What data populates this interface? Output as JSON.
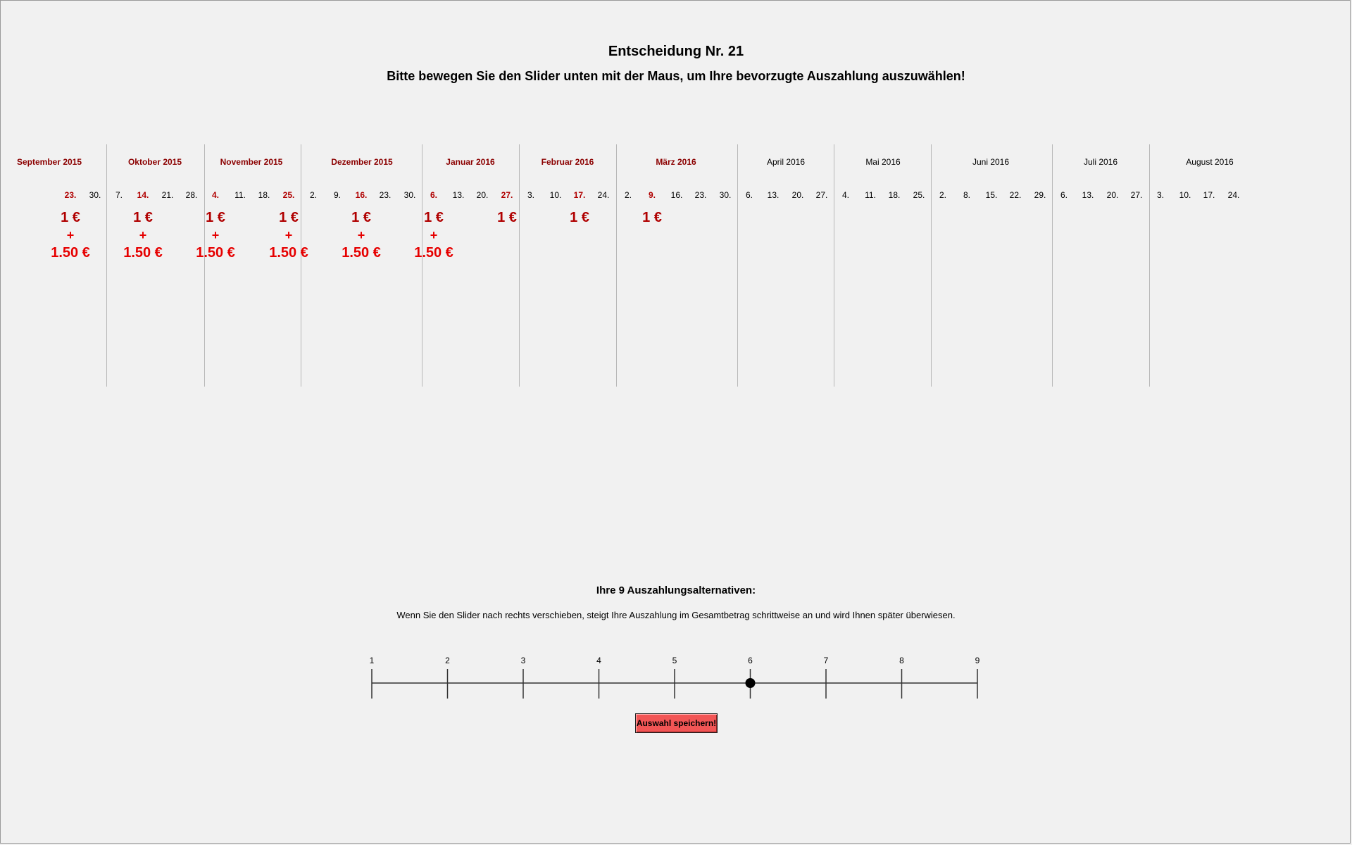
{
  "header": {
    "title": "Entscheidung Nr. 21",
    "instruction": "Bitte bewegen Sie den Slider unten mit der Maus, um Ihre bevorzugte Auszahlung auszuwählen!"
  },
  "calendar": {
    "months": [
      {
        "label": "September 2015",
        "highlighted": true
      },
      {
        "label": "Oktober 2015",
        "highlighted": true
      },
      {
        "label": "November 2015",
        "highlighted": true
      },
      {
        "label": "Dezember 2015",
        "highlighted": true
      },
      {
        "label": "Januar 2016",
        "highlighted": true
      },
      {
        "label": "Februar 2016",
        "highlighted": true
      },
      {
        "label": "März 2016",
        "highlighted": true
      },
      {
        "label": "April 2016",
        "highlighted": false
      },
      {
        "label": "Mai 2016",
        "highlighted": false
      },
      {
        "label": "Juni 2016",
        "highlighted": false
      },
      {
        "label": "Juli 2016",
        "highlighted": false
      },
      {
        "label": "August 2016",
        "highlighted": false
      }
    ],
    "days": [
      {
        "label": "23.",
        "highlighted": true
      },
      {
        "label": "30.",
        "highlighted": false
      },
      {
        "label": "7.",
        "highlighted": false
      },
      {
        "label": "14.",
        "highlighted": true
      },
      {
        "label": "21.",
        "highlighted": false
      },
      {
        "label": "28.",
        "highlighted": false
      },
      {
        "label": "4.",
        "highlighted": true
      },
      {
        "label": "11.",
        "highlighted": false
      },
      {
        "label": "18.",
        "highlighted": false
      },
      {
        "label": "25.",
        "highlighted": true
      },
      {
        "label": "2.",
        "highlighted": false
      },
      {
        "label": "9.",
        "highlighted": false
      },
      {
        "label": "16.",
        "highlighted": true
      },
      {
        "label": "23.",
        "highlighted": false
      },
      {
        "label": "30.",
        "highlighted": false
      },
      {
        "label": "6.",
        "highlighted": true
      },
      {
        "label": "13.",
        "highlighted": false
      },
      {
        "label": "20.",
        "highlighted": false
      },
      {
        "label": "27.",
        "highlighted": true
      },
      {
        "label": "3.",
        "highlighted": false
      },
      {
        "label": "10.",
        "highlighted": false
      },
      {
        "label": "17.",
        "highlighted": true
      },
      {
        "label": "24.",
        "highlighted": false
      },
      {
        "label": "2.",
        "highlighted": false
      },
      {
        "label": "9.",
        "highlighted": true
      },
      {
        "label": "16.",
        "highlighted": false
      },
      {
        "label": "23.",
        "highlighted": false
      },
      {
        "label": "30.",
        "highlighted": false
      },
      {
        "label": "6.",
        "highlighted": false
      },
      {
        "label": "13.",
        "highlighted": false
      },
      {
        "label": "20.",
        "highlighted": false
      },
      {
        "label": "27.",
        "highlighted": false
      },
      {
        "label": "4.",
        "highlighted": false
      },
      {
        "label": "11.",
        "highlighted": false
      },
      {
        "label": "18.",
        "highlighted": false
      },
      {
        "label": "25.",
        "highlighted": false
      },
      {
        "label": "2.",
        "highlighted": false
      },
      {
        "label": "8.",
        "highlighted": false
      },
      {
        "label": "15.",
        "highlighted": false
      },
      {
        "label": "22.",
        "highlighted": false
      },
      {
        "label": "29.",
        "highlighted": false
      },
      {
        "label": "6.",
        "highlighted": false
      },
      {
        "label": "13.",
        "highlighted": false
      },
      {
        "label": "20.",
        "highlighted": false
      },
      {
        "label": "27.",
        "highlighted": false
      },
      {
        "label": "3.",
        "highlighted": false
      },
      {
        "label": "10.",
        "highlighted": false
      },
      {
        "label": "17.",
        "highlighted": false
      },
      {
        "label": "24.",
        "highlighted": false
      }
    ],
    "payments": [
      {
        "date": "23.",
        "amount": "1 €",
        "plus": "+",
        "extra": "1.50 €"
      },
      {
        "date": "14.",
        "amount": "1 €",
        "plus": "+",
        "extra": "1.50 €"
      },
      {
        "date": "4.",
        "amount": "1 €",
        "plus": "+",
        "extra": "1.50 €"
      },
      {
        "date": "25.",
        "amount": "1 €",
        "plus": "+",
        "extra": "1.50 €"
      },
      {
        "date": "16.",
        "amount": "1 €",
        "plus": "+",
        "extra": "1.50 €"
      },
      {
        "date": "6.",
        "amount": "1 €",
        "plus": "+",
        "extra": "1.50 €"
      },
      {
        "date": "27.",
        "amount": "1 €"
      },
      {
        "date": "17.",
        "amount": "1 €"
      },
      {
        "date": "9.",
        "amount": "1 €"
      }
    ]
  },
  "alternatives": {
    "title": "Ihre 9 Auszahlungsalternativen:",
    "description": "Wenn Sie den Slider nach rechts verschieben, steigt Ihre Auszahlung im Gesamtbetrag schrittweise an und wird Ihnen später überwiesen.",
    "slider": {
      "ticks": [
        "1",
        "2",
        "3",
        "4",
        "5",
        "6",
        "7",
        "8",
        "9"
      ],
      "selected": 6
    },
    "save_label": "Auswahl speichern!"
  },
  "colors": {
    "background": "#f1f1f1",
    "month_highlight": "#8b0000",
    "amount_red": "#e60000",
    "button_bg": "#f25555"
  }
}
